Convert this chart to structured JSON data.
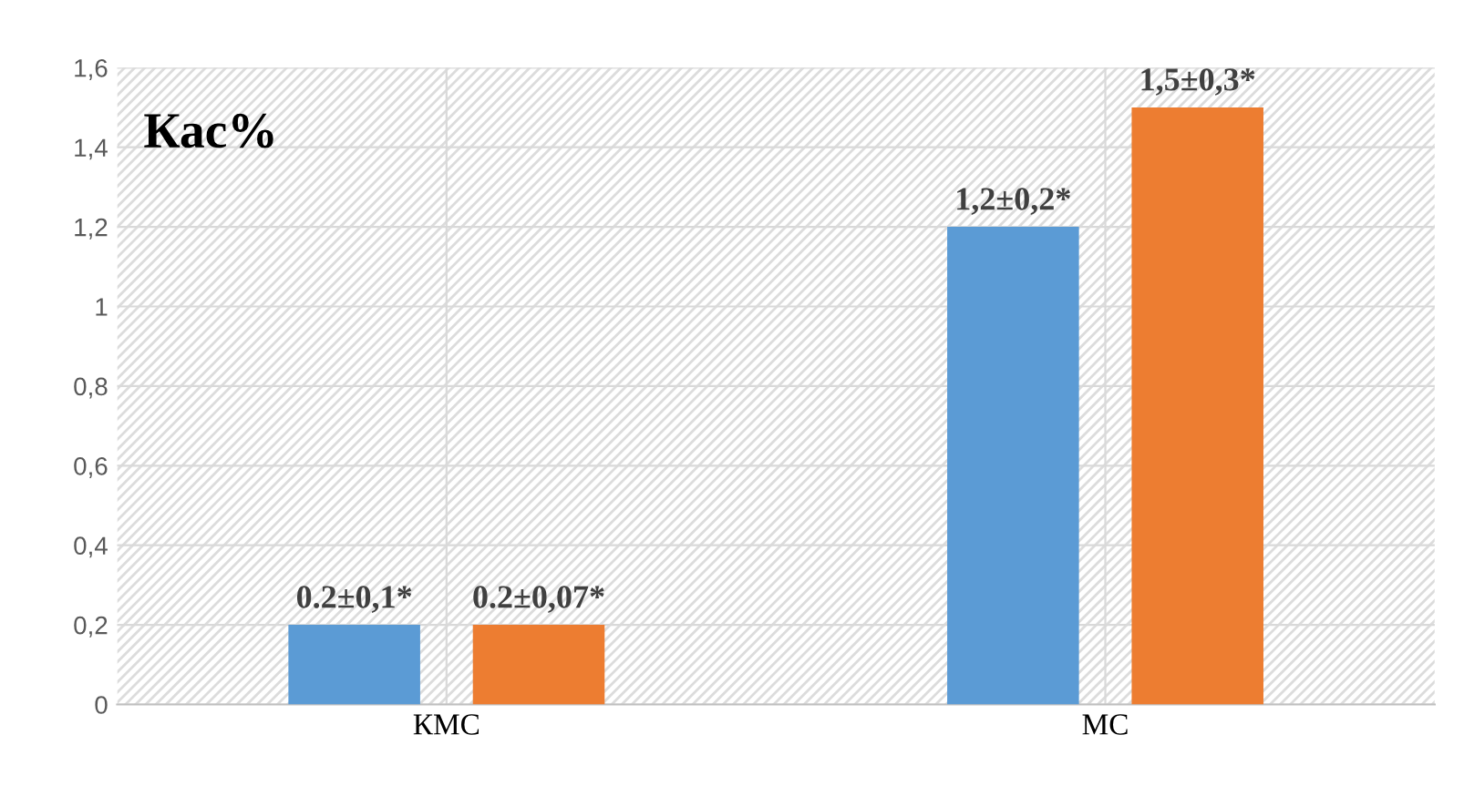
{
  "chart_data": {
    "type": "bar",
    "title": "Кас%",
    "categories": [
      "КМС",
      "МС"
    ],
    "series": [
      {
        "color": "#5b9bd5",
        "values": [
          0.2,
          1.2
        ],
        "value_labels": [
          "0.2±0,1*",
          "1,2±0,2*"
        ]
      },
      {
        "color": "#ed7d31",
        "values": [
          0.2,
          1.5
        ],
        "value_labels": [
          "0.2±0,07*",
          "1,5±0,3*"
        ]
      }
    ],
    "ylim": [
      0,
      1.6
    ],
    "yticks": [
      0,
      {
        "value": 0.2,
        "label": "0,2"
      },
      {
        "value": 0.4,
        "label": "0,4"
      },
      {
        "value": 0.6,
        "label": "0,6"
      },
      {
        "value": 0.8,
        "label": "0,8"
      },
      1,
      {
        "value": 1.2,
        "label": "1,2"
      },
      {
        "value": 1.4,
        "label": "1,4"
      },
      {
        "value": 1.6,
        "label": "1,6"
      }
    ],
    "grid": true,
    "legend": false
  }
}
